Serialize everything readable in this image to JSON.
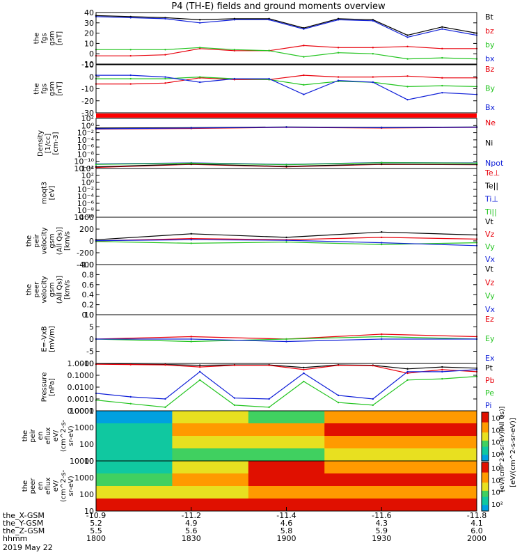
{
  "title": "P4 (TH-E) fields and ground moments overview",
  "date_label": "2019 May 22",
  "time_axis": {
    "ticks": [
      "1800",
      "1830",
      "1900",
      "1930",
      "2000"
    ],
    "rows": [
      {
        "label": "the_X-GSM",
        "values": [
          "-10.9",
          "-11.2",
          "-11.4",
          "-11.6",
          "-11.8"
        ]
      },
      {
        "label": "the_Y-GSM",
        "values": [
          "5.2",
          "4.9",
          "4.6",
          "4.3",
          "4.1"
        ]
      },
      {
        "label": "the_Z-GSM",
        "values": [
          "5.5",
          "5.6",
          "5.8",
          "5.9",
          "6.0"
        ]
      },
      {
        "label": "hhmm",
        "values": [
          "1800",
          "1830",
          "1900",
          "1930",
          "2000"
        ]
      }
    ]
  },
  "colors": {
    "black": "#000000",
    "red": "#e8000b",
    "green": "#22c41f",
    "blue": "#1020d8",
    "bar": "#ff0000"
  },
  "chart_data": [
    {
      "type": "line",
      "ylabel": [
        "the",
        "fgs",
        "gsm",
        "[nT]"
      ],
      "yticks": [
        "40",
        "30",
        "20",
        "10",
        "0",
        "-10"
      ],
      "ylim": [
        -10,
        40
      ],
      "legend": [
        "Bt",
        "bz",
        "by",
        "bx"
      ],
      "x": [
        "1800",
        "1815",
        "1825",
        "1830",
        "1840",
        "1855",
        "1905",
        "1915",
        "1925",
        "1932",
        "1945",
        "2000"
      ],
      "series": [
        {
          "name": "Bt",
          "color": "black",
          "values": [
            37,
            36,
            35,
            33,
            34,
            34,
            25,
            34,
            33,
            18,
            26,
            20
          ]
        },
        {
          "name": "bz",
          "color": "red",
          "values": [
            -2,
            -2,
            -1,
            5,
            3,
            3,
            8,
            6,
            6,
            7,
            5,
            5
          ]
        },
        {
          "name": "by",
          "color": "green",
          "values": [
            4,
            4,
            4,
            6,
            4,
            3,
            -3,
            1,
            0,
            -5,
            -4,
            -5
          ]
        },
        {
          "name": "bx",
          "color": "blue",
          "values": [
            36,
            35,
            34,
            30,
            33,
            33,
            24,
            33,
            32,
            16,
            24,
            18
          ]
        }
      ]
    },
    {
      "type": "line",
      "ylabel": [
        "the",
        "fgs",
        "gsm",
        "[nT]"
      ],
      "yticks": [
        "10",
        "0",
        "-10",
        "-20",
        "-30"
      ],
      "ylim": [
        -35,
        20
      ],
      "legend": [
        "Bz",
        "By",
        "Bx"
      ],
      "x": [
        "1800",
        "1815",
        "1825",
        "1830",
        "1840",
        "1855",
        "1905",
        "1915",
        "1925",
        "1932",
        "1945",
        "2000"
      ],
      "series": [
        {
          "name": "Bz",
          "color": "red",
          "values": [
            -2,
            -2,
            -1,
            5,
            3,
            3,
            8,
            6,
            6,
            7,
            5,
            5
          ]
        },
        {
          "name": "By",
          "color": "green",
          "values": [
            4,
            4,
            4,
            6,
            4,
            3,
            -3,
            1,
            0,
            -5,
            -4,
            -5
          ]
        },
        {
          "name": "Bx",
          "color": "blue",
          "values": [
            8,
            8,
            6,
            0,
            4,
            4,
            -14,
            2,
            0,
            -20,
            -12,
            -14
          ]
        }
      ]
    },
    {
      "type": "line",
      "yscale": "log",
      "ylabel": [
        "Density",
        "[1/cc]",
        "[cm-3]"
      ],
      "yticks": [
        "10²",
        "10⁰",
        "10⁻²",
        "10⁻⁴",
        "10⁻⁶",
        "10⁻⁸",
        "10⁻¹⁰",
        "10⁻¹²"
      ],
      "legend": [
        "Ne",
        "Ni",
        "Npot"
      ],
      "x": [
        "1800",
        "1830",
        "1900",
        "1930",
        "2000"
      ],
      "series": [
        {
          "name": "Ne",
          "color": "red",
          "values": [
            0.1,
            0.15,
            0.3,
            0.2,
            0.3
          ]
        },
        {
          "name": "Ni",
          "color": "black",
          "values": [
            0.2,
            0.25,
            0.4,
            0.3,
            0.4
          ]
        },
        {
          "name": "Npot",
          "color": "blue",
          "values": [
            0.12,
            0.2,
            0.35,
            0.25,
            0.35
          ]
        }
      ]
    },
    {
      "type": "line",
      "yscale": "log",
      "ylabel": [
        "moqt3",
        "[eV]"
      ],
      "yticks": [
        "10⁴",
        "10²",
        "10⁰",
        "10⁻²",
        "10⁻⁴",
        "10⁻⁶",
        "10⁻⁸",
        "10⁻¹⁰"
      ],
      "legend": [
        "Te⊥",
        "Te||",
        "Ti⊥",
        "Ti||"
      ],
      "x": [
        "1800",
        "1830",
        "1900",
        "1930",
        "2000"
      ],
      "series": [
        {
          "name": "Te⊥",
          "color": "red",
          "values": [
            200,
            1500,
            300,
            1500,
            1200
          ]
        },
        {
          "name": "Te||",
          "color": "black",
          "values": [
            300,
            1800,
            400,
            1800,
            1400
          ]
        },
        {
          "name": "Ti⊥",
          "color": "blue",
          "values": [
            2000,
            4000,
            1500,
            5000,
            4000
          ]
        },
        {
          "name": "Ti||",
          "color": "green",
          "values": [
            1500,
            3500,
            1200,
            4500,
            3500
          ]
        }
      ]
    },
    {
      "type": "line",
      "ylabel": [
        "the",
        "peir",
        "velocity",
        "gsm",
        "(All Qs)]",
        "[km/s"
      ],
      "yticks": [
        "400",
        "200",
        "0",
        "-200",
        "-400"
      ],
      "ylim": [
        -400,
        400
      ],
      "legend": [
        "Vt",
        "Vz",
        "Vy",
        "Vx"
      ],
      "x": [
        "1800",
        "1830",
        "1900",
        "1930",
        "2000"
      ],
      "series": [
        {
          "name": "Vt",
          "color": "black",
          "values": [
            20,
            120,
            60,
            150,
            100
          ]
        },
        {
          "name": "Vz",
          "color": "red",
          "values": [
            0,
            40,
            20,
            60,
            30
          ]
        },
        {
          "name": "Vy",
          "color": "green",
          "values": [
            -10,
            -40,
            -20,
            -60,
            -30
          ]
        },
        {
          "name": "Vx",
          "color": "blue",
          "values": [
            5,
            20,
            10,
            -30,
            -80
          ]
        }
      ]
    },
    {
      "type": "line",
      "ylabel": [
        "the",
        "peer",
        "velocity",
        "gsm",
        "(All Qs)]",
        "[km/s"
      ],
      "yticks": [
        "1.0",
        "0.8",
        "0.6",
        "0.4",
        "0.2",
        "0.0"
      ],
      "ylim": [
        0,
        1
      ],
      "legend": [
        "Vt",
        "Vz",
        "Vy",
        "Vx"
      ],
      "x": [],
      "series": []
    },
    {
      "type": "line",
      "ylabel": [
        "E=-VxB",
        "[mV/m]"
      ],
      "yticks": [
        "10",
        "5",
        "0",
        "-5",
        "-10"
      ],
      "ylim": [
        -10,
        10
      ],
      "legend": [
        "Ez",
        "Ey",
        "Ex"
      ],
      "x": [
        "1800",
        "1830",
        "1900",
        "1930",
        "2000"
      ],
      "series": [
        {
          "name": "Ez",
          "color": "red",
          "values": [
            0,
            1,
            0,
            2,
            1
          ]
        },
        {
          "name": "Ey",
          "color": "green",
          "values": [
            0,
            -1,
            0,
            1,
            0
          ]
        },
        {
          "name": "Ex",
          "color": "blue",
          "values": [
            0,
            0,
            -1,
            0,
            0
          ]
        }
      ]
    },
    {
      "type": "line",
      "yscale": "log",
      "ylabel": [
        "Pressure",
        "[nPa]"
      ],
      "yticks": [
        "1.0000",
        "0.1000",
        "0.0100",
        "0.0010",
        "0.0001"
      ],
      "ylim": [
        0.0001,
        1
      ],
      "legend": [
        "Pt",
        "Pb",
        "Pe",
        "Pi"
      ],
      "x": [
        "1800",
        "1815",
        "1825",
        "1830",
        "1840",
        "1855",
        "1905",
        "1915",
        "1925",
        "1932",
        "1945",
        "2000"
      ],
      "series": [
        {
          "name": "Pt",
          "color": "black",
          "values": [
            0.9,
            0.85,
            0.8,
            0.7,
            0.75,
            0.75,
            0.45,
            0.75,
            0.7,
            0.35,
            0.5,
            0.4
          ]
        },
        {
          "name": "Pb",
          "color": "red",
          "values": [
            0.85,
            0.8,
            0.75,
            0.5,
            0.7,
            0.7,
            0.3,
            0.7,
            0.65,
            0.15,
            0.3,
            0.2
          ]
        },
        {
          "name": "Pe",
          "color": "green",
          "values": [
            0.0008,
            0.0004,
            0.0002,
            0.04,
            0.0003,
            0.0002,
            0.03,
            0.0005,
            0.0003,
            0.04,
            0.05,
            0.08
          ]
        },
        {
          "name": "Pi",
          "color": "blue",
          "values": [
            0.003,
            0.0015,
            0.001,
            0.2,
            0.0012,
            0.001,
            0.15,
            0.002,
            0.001,
            0.2,
            0.2,
            0.3
          ]
        }
      ]
    },
    {
      "type": "heatmap",
      "ylabel": [
        "the",
        "peir",
        "en",
        "eflux",
        "eV/",
        "(cm^2-s-",
        "sr-eV)"
      ],
      "yticks": [
        "10000",
        "1000",
        "100",
        "10"
      ],
      "ylim": [
        5,
        30000
      ],
      "x": [
        "1800",
        "1830",
        "1900",
        "1930",
        "2000"
      ],
      "bands": [
        "10000",
        "1000",
        "100",
        "10"
      ],
      "values": [
        [
          3,
          6,
          5,
          7,
          7
        ],
        [
          4,
          7,
          7,
          8,
          8
        ],
        [
          4,
          6,
          6,
          7,
          7
        ],
        [
          4,
          5,
          5,
          6,
          6
        ]
      ]
    },
    {
      "type": "heatmap",
      "ylabel": [
        "the",
        "peer",
        "en",
        "eflux",
        "eV/",
        "(cm^2-s-",
        "sr-eV)"
      ],
      "yticks": [
        "10000",
        "1000",
        "100",
        "10"
      ],
      "ylim": [
        5,
        30000
      ],
      "x": [
        "1800",
        "1830",
        "1900",
        "1930",
        "2000"
      ],
      "bands": [
        "10000",
        "1000",
        "100",
        "10"
      ],
      "values": [
        [
          4,
          6,
          8,
          7,
          7
        ],
        [
          5,
          7,
          8,
          8,
          8
        ],
        [
          6,
          6,
          7,
          7,
          7
        ],
        [
          8,
          8,
          8,
          8,
          8
        ]
      ]
    }
  ],
  "colorbar": {
    "label": "[eV/(cm^2-s-sr-eV)]",
    "overlay_label": "[eV/(cm^2-s-sr-eV)(All Qs)]",
    "ticks_top": [
      "10⁸",
      "10⁶",
      "10⁴",
      "10²"
    ],
    "ticks_bottom": [
      "10⁸",
      "10⁶",
      "10⁴",
      "10²"
    ]
  }
}
